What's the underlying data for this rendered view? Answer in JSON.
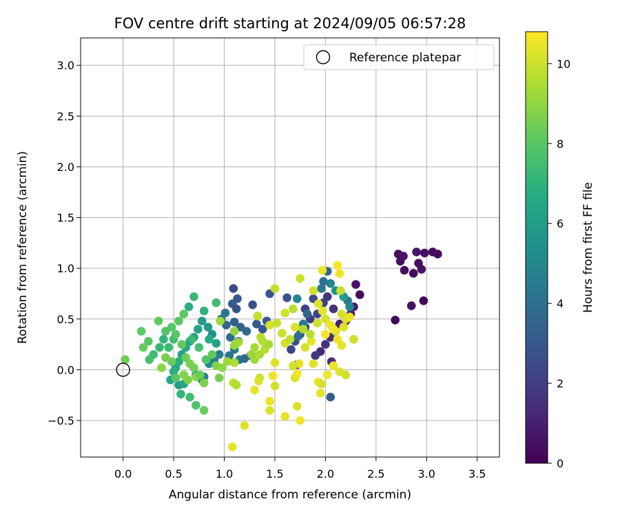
{
  "chart_data": {
    "type": "scatter",
    "title": "FOV centre drift starting at 2024/09/05 06:57:28",
    "xlabel": "Angular distance from reference (arcmin)",
    "ylabel": "Rotation from reference (arcmin)",
    "xlim": [
      -0.42,
      3.72
    ],
    "ylim": [
      -0.86,
      3.27
    ],
    "xticks": [
      0.0,
      0.5,
      1.0,
      1.5,
      2.0,
      2.5,
      3.0,
      3.5
    ],
    "xtick_labels": [
      "0.0",
      "0.5",
      "1.0",
      "1.5",
      "2.0",
      "2.5",
      "3.0",
      "3.5"
    ],
    "yticks": [
      -0.5,
      0.0,
      0.5,
      1.0,
      1.5,
      2.0,
      2.5,
      3.0
    ],
    "ytick_labels": [
      "−0.5",
      "0.0",
      "0.5",
      "1.0",
      "1.5",
      "2.0",
      "2.5",
      "3.0"
    ],
    "grid": true,
    "legend_position": "top-right",
    "legend": [
      {
        "label": "Reference platepar",
        "marker": "open-circle"
      }
    ],
    "reference_point": [
      0.0,
      0.0
    ],
    "colorbar": {
      "label": "Hours from first FF file",
      "min": 0,
      "max": 10.8,
      "ticks": [
        0,
        2,
        4,
        6,
        8,
        10
      ],
      "tick_labels": [
        "0",
        "2",
        "4",
        "6",
        "8",
        "10"
      ],
      "colormap": "viridis"
    },
    "points": [
      [
        2.69,
        0.49,
        0.2
      ],
      [
        2.72,
        1.14,
        0.3
      ],
      [
        2.74,
        1.07,
        0.5
      ],
      [
        2.77,
        1.12,
        0.6
      ],
      [
        2.78,
        0.98,
        0.4
      ],
      [
        2.85,
        0.63,
        0.5
      ],
      [
        2.87,
        0.95,
        0.3
      ],
      [
        2.9,
        1.16,
        0.7
      ],
      [
        2.92,
        1.05,
        0.4
      ],
      [
        2.95,
        0.99,
        0.6
      ],
      [
        2.97,
        0.68,
        0.2
      ],
      [
        2.98,
        1.15,
        0.5
      ],
      [
        3.06,
        1.16,
        0.3
      ],
      [
        3.11,
        1.14,
        0.4
      ],
      [
        2.3,
        0.84,
        0.5
      ],
      [
        2.34,
        0.74,
        0.3
      ],
      [
        2.28,
        0.62,
        0.8
      ],
      [
        2.25,
        0.55,
        1.0
      ],
      [
        2.2,
        0.48,
        1.2
      ],
      [
        2.14,
        0.45,
        0.9
      ],
      [
        2.1,
        0.38,
        1.1
      ],
      [
        2.05,
        0.32,
        1.4
      ],
      [
        2.0,
        0.25,
        1.6
      ],
      [
        1.95,
        0.18,
        1.3
      ],
      [
        1.9,
        0.14,
        1.8
      ],
      [
        2.06,
        0.08,
        1.5
      ],
      [
        2.02,
        0.72,
        1.7
      ],
      [
        1.98,
        0.66,
        2.0
      ],
      [
        2.08,
        0.6,
        1.6
      ],
      [
        1.92,
        0.55,
        2.2
      ],
      [
        1.85,
        0.5,
        1.9
      ],
      [
        1.8,
        0.42,
        2.1
      ],
      [
        1.75,
        0.35,
        2.4
      ],
      [
        1.7,
        0.28,
        2.6
      ],
      [
        1.66,
        0.2,
        2.3
      ],
      [
        1.72,
        0.05,
        1.2
      ],
      [
        1.8,
        0.6,
        2.0
      ],
      [
        1.88,
        0.7,
        2.5
      ],
      [
        1.62,
        0.71,
        2.7
      ],
      [
        1.45,
        0.75,
        2.8
      ],
      [
        1.42,
        0.48,
        3.0
      ],
      [
        1.38,
        0.4,
        2.9
      ],
      [
        1.32,
        0.45,
        3.1
      ],
      [
        1.28,
        0.64,
        2.6
      ],
      [
        1.13,
        0.7,
        3.0
      ],
      [
        1.08,
        0.65,
        3.2
      ],
      [
        1.12,
        0.6,
        2.8
      ],
      [
        1.09,
        0.8,
        2.4
      ],
      [
        1.1,
        0.47,
        3.3
      ],
      [
        1.16,
        0.42,
        3.4
      ],
      [
        1.22,
        0.38,
        3.6
      ],
      [
        1.06,
        0.32,
        3.8
      ],
      [
        1.02,
        0.44,
        3.5
      ],
      [
        0.97,
        0.5,
        4.0
      ],
      [
        1.01,
        0.56,
        4.2
      ],
      [
        1.14,
        0.28,
        3.9
      ],
      [
        1.1,
        0.2,
        4.3
      ],
      [
        1.05,
        0.14,
        4.1
      ],
      [
        1.15,
        0.1,
        4.4
      ],
      [
        1.2,
        0.11,
        3.7
      ],
      [
        1.26,
        0.14,
        3.5
      ],
      [
        0.95,
        0.15,
        4.6
      ],
      [
        0.9,
        0.1,
        4.8
      ],
      [
        0.85,
        0.06,
        5.0
      ],
      [
        0.8,
        -0.07,
        4.7
      ],
      [
        0.78,
        -0.1,
        5.2
      ],
      [
        0.72,
        -0.05,
        5.4
      ],
      [
        2.05,
        -0.27,
        3.3
      ],
      [
        2.02,
        0.97,
        3.5
      ],
      [
        1.98,
        0.87,
        4.0
      ],
      [
        2.05,
        0.85,
        4.8
      ],
      [
        2.1,
        0.78,
        5.5
      ],
      [
        1.96,
        0.8,
        4.3
      ],
      [
        1.72,
        0.7,
        5.0
      ],
      [
        1.82,
        0.55,
        3.6
      ],
      [
        1.78,
        0.45,
        4.4
      ],
      [
        1.73,
        0.33,
        4.0
      ],
      [
        2.22,
        0.68,
        4.4
      ],
      [
        2.24,
        0.62,
        4.9
      ],
      [
        2.18,
        0.72,
        5.8
      ],
      [
        0.88,
        0.35,
        5.5
      ],
      [
        0.84,
        0.42,
        5.8
      ],
      [
        0.78,
        0.48,
        6.0
      ],
      [
        0.74,
        0.4,
        6.2
      ],
      [
        0.7,
        0.32,
        5.9
      ],
      [
        0.66,
        0.28,
        6.4
      ],
      [
        0.62,
        0.22,
        6.6
      ],
      [
        0.58,
        0.15,
        6.2
      ],
      [
        0.55,
        0.08,
        6.8
      ],
      [
        0.52,
        0.02,
        6.5
      ],
      [
        0.5,
        -0.02,
        6.9
      ],
      [
        0.47,
        -0.1,
        6.3
      ],
      [
        0.55,
        -0.15,
        6.0
      ],
      [
        0.6,
        -0.14,
        6.4
      ],
      [
        0.65,
        0.62,
        6.8
      ],
      [
        0.7,
        0.72,
        7.2
      ],
      [
        0.8,
        0.58,
        7.0
      ],
      [
        0.92,
        0.66,
        7.4
      ],
      [
        0.85,
        0.3,
        6.7
      ],
      [
        0.92,
        0.26,
        6.1
      ],
      [
        0.4,
        0.3,
        7.0
      ],
      [
        0.36,
        0.22,
        7.2
      ],
      [
        0.3,
        0.15,
        7.4
      ],
      [
        0.26,
        0.1,
        7.6
      ],
      [
        0.42,
        0.38,
        7.8
      ],
      [
        0.48,
        0.42,
        7.9
      ],
      [
        0.55,
        0.48,
        8.0
      ],
      [
        0.6,
        0.55,
        8.1
      ],
      [
        0.5,
        0.3,
        7.5
      ],
      [
        0.45,
        0.22,
        7.3
      ],
      [
        0.35,
        0.48,
        8.2
      ],
      [
        0.25,
        0.28,
        8.0
      ],
      [
        0.2,
        0.22,
        8.3
      ],
      [
        0.18,
        0.38,
        8.1
      ],
      [
        0.02,
        0.1,
        8.4
      ],
      [
        0.58,
        0.25,
        8.2
      ],
      [
        0.62,
        0.12,
        8.4
      ],
      [
        0.66,
        0.06,
        8.6
      ],
      [
        0.7,
        0.02,
        8.5
      ],
      [
        0.64,
        -0.1,
        8.7
      ],
      [
        0.6,
        -0.05,
        8.8
      ],
      [
        0.52,
        0.35,
        8.0
      ],
      [
        0.48,
        0.08,
        8.3
      ],
      [
        0.42,
        0.12,
        8.6
      ],
      [
        0.38,
        0.02,
        8.9
      ],
      [
        0.72,
        -0.07,
        8.9
      ],
      [
        0.76,
        -0.05,
        8.4
      ],
      [
        0.8,
        -0.13,
        8.7
      ],
      [
        0.75,
        0.22,
        7.6
      ],
      [
        0.68,
        0.3,
        7.3
      ],
      [
        0.82,
        0.1,
        7.9
      ],
      [
        0.88,
        0.15,
        8.2
      ],
      [
        0.66,
        -0.27,
        7.5
      ],
      [
        0.72,
        -0.35,
        7.8
      ],
      [
        0.8,
        -0.4,
        8.3
      ],
      [
        0.57,
        -0.24,
        7.1
      ],
      [
        0.52,
        -0.08,
        8.0
      ],
      [
        0.95,
        -0.08,
        8.6
      ],
      [
        0.92,
        0.04,
        8.8
      ],
      [
        0.98,
        0.02,
        9.0
      ],
      [
        0.96,
        0.48,
        9.2
      ],
      [
        1.1,
        0.38,
        9.0
      ],
      [
        1.1,
        0.24,
        9.1
      ],
      [
        1.14,
        0.27,
        9.3
      ],
      [
        1.03,
        0.08,
        9.2
      ],
      [
        1.3,
        0.1,
        9.3
      ],
      [
        1.35,
        0.15,
        9.5
      ],
      [
        1.4,
        0.2,
        9.6
      ],
      [
        1.44,
        0.25,
        9.4
      ],
      [
        1.36,
        0.32,
        9.7
      ],
      [
        1.33,
        0.53,
        9.9
      ],
      [
        1.5,
        0.8,
        9.8
      ],
      [
        1.57,
        0.36,
        10.0
      ],
      [
        1.6,
        0.26,
        10.1
      ],
      [
        1.65,
        0.3,
        9.8
      ],
      [
        1.7,
        0.42,
        10.2
      ],
      [
        1.75,
        0.9,
        10.0
      ],
      [
        1.88,
        0.78,
        10.1
      ],
      [
        1.93,
        0.65,
        10.3
      ],
      [
        1.97,
        0.58,
        10.4
      ],
      [
        2.0,
        0.5,
        10.2
      ],
      [
        2.05,
        0.44,
        10.5
      ],
      [
        2.1,
        0.38,
        10.3
      ],
      [
        2.12,
        0.3,
        10.6
      ],
      [
        2.16,
        0.24,
        10.4
      ],
      [
        2.2,
        0.5,
        10.2
      ],
      [
        2.28,
        0.3,
        10.0
      ],
      [
        2.14,
        0.95,
        10.6
      ],
      [
        2.12,
        1.03,
        10.7
      ],
      [
        1.97,
        0.98,
        10.5
      ],
      [
        2.15,
        0.78,
        9.9
      ],
      [
        2.16,
        0.55,
        10.1
      ],
      [
        2.18,
        0.42,
        10.3
      ],
      [
        2.24,
        0.52,
        10.5
      ],
      [
        1.92,
        0.46,
        10.0
      ],
      [
        1.86,
        0.28,
        10.4
      ],
      [
        1.8,
        0.22,
        10.2
      ],
      [
        1.74,
        0.06,
        10.4
      ],
      [
        1.7,
        -0.08,
        10.3
      ],
      [
        1.72,
        -0.04,
        10.6
      ],
      [
        1.68,
        0.04,
        10.1
      ],
      [
        1.6,
        -0.46,
        10.4
      ],
      [
        1.75,
        -0.5,
        10.6
      ],
      [
        1.72,
        -0.36,
        10.2
      ],
      [
        1.45,
        -0.4,
        10.3
      ],
      [
        1.45,
        -0.31,
        10.5
      ],
      [
        1.35,
        -0.08,
        10.0
      ],
      [
        1.34,
        -0.11,
        10.2
      ],
      [
        1.3,
        -0.2,
        10.4
      ],
      [
        1.48,
        -0.06,
        10.5
      ],
      [
        1.5,
        0.07,
        10.3
      ],
      [
        1.5,
        -0.16,
        10.1
      ],
      [
        1.2,
        -0.55,
        10.3
      ],
      [
        1.08,
        -0.76,
        10.4
      ],
      [
        1.09,
        -0.13,
        9.8
      ],
      [
        1.12,
        -0.15,
        9.6
      ],
      [
        1.1,
        0.07,
        9.5
      ],
      [
        1.27,
        0.15,
        9.2
      ],
      [
        1.3,
        0.22,
        9.4
      ],
      [
        1.38,
        0.28,
        9.6
      ],
      [
        1.45,
        0.44,
        10.1
      ],
      [
        1.52,
        0.46,
        9.9
      ],
      [
        1.6,
        0.56,
        10.0
      ],
      [
        1.68,
        0.6,
        9.7
      ],
      [
        1.78,
        0.4,
        9.5
      ],
      [
        1.85,
        0.35,
        9.7
      ],
      [
        1.88,
        0.06,
        10.3
      ],
      [
        1.93,
        -0.12,
        10.5
      ],
      [
        1.96,
        -0.14,
        10.2
      ],
      [
        1.95,
        -0.23,
        10.4
      ],
      [
        2.02,
        -0.05,
        10.6
      ],
      [
        2.08,
        0.04,
        10.5
      ],
      [
        2.14,
        -0.02,
        10.3
      ],
      [
        2.2,
        -0.05,
        10.1
      ],
      [
        2.08,
        0.4,
        10.6
      ],
      [
        2.0,
        0.35,
        10.7
      ]
    ]
  }
}
